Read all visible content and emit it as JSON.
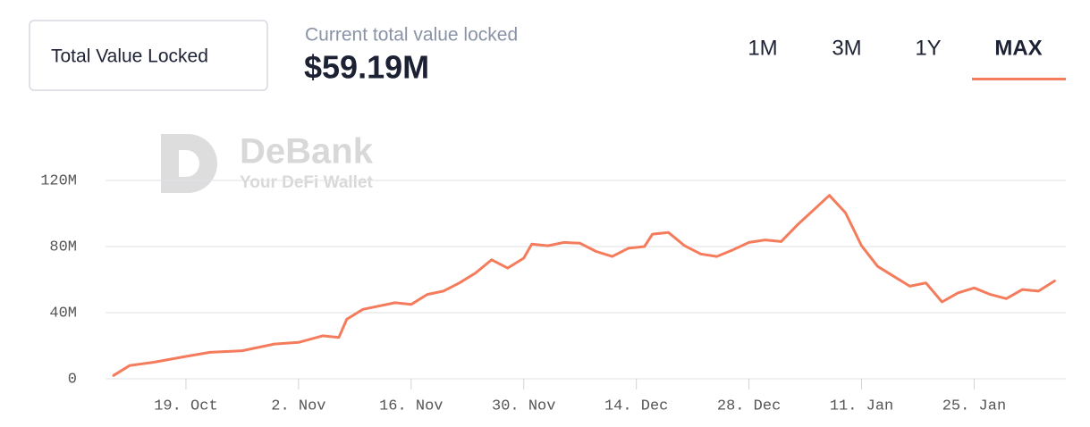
{
  "header": {
    "title": "Total Value Locked",
    "subtitle": "Current total value locked",
    "current_value": "$59.19M",
    "tabs": [
      "1M",
      "3M",
      "1Y",
      "MAX"
    ],
    "active_tab": "MAX"
  },
  "watermark": {
    "brand": "DeBank",
    "tagline": "Your DeFi Wallet"
  },
  "chart_data": {
    "type": "line",
    "x": [
      0,
      2,
      5,
      9,
      12,
      16,
      20,
      23,
      26,
      28,
      29,
      31,
      35,
      37,
      39,
      41,
      43,
      45,
      47,
      49,
      51,
      52,
      54,
      56,
      58,
      60,
      62,
      64,
      66,
      67,
      69,
      71,
      73,
      75,
      77,
      79,
      81,
      83,
      85,
      87,
      89,
      91,
      93,
      95,
      97,
      99,
      101,
      103,
      105,
      107,
      109,
      111,
      113,
      115,
      117
    ],
    "series": [
      {
        "color": "#f47c5c",
        "values": [
          2,
          8,
          10,
          13.5,
          16,
          17,
          21,
          22,
          26,
          25,
          36,
          42,
          46,
          45,
          51,
          53,
          58,
          64,
          72,
          67,
          73,
          81.5,
          80.5,
          82.5,
          82,
          77,
          74,
          79,
          80,
          87.5,
          88.5,
          80.5,
          75.5,
          74,
          78,
          82.5,
          84,
          83,
          93,
          102,
          111,
          100.5,
          80.5,
          68,
          62,
          56,
          58,
          46.5,
          52,
          55,
          51,
          48.5,
          54,
          53,
          59.19
        ]
      }
    ],
    "xlim": [
      -1,
      118.4
    ],
    "xticks": [
      {
        "value": 9,
        "label": "19. Oct"
      },
      {
        "value": 23,
        "label": "2. Nov"
      },
      {
        "value": 37,
        "label": "16. Nov"
      },
      {
        "value": 51,
        "label": "30. Nov"
      },
      {
        "value": 65,
        "label": "14. Dec"
      },
      {
        "value": 79,
        "label": "28. Dec"
      },
      {
        "value": 93,
        "label": "11. Jan"
      },
      {
        "value": 107,
        "label": "25. Jan"
      }
    ],
    "ylim": [
      0,
      160
    ],
    "yticks": [
      0,
      {
        "value": 40,
        "label": "40M"
      },
      {
        "value": 80,
        "label": "80M"
      },
      {
        "value": 120,
        "label": "120M"
      }
    ],
    "grid": true
  }
}
